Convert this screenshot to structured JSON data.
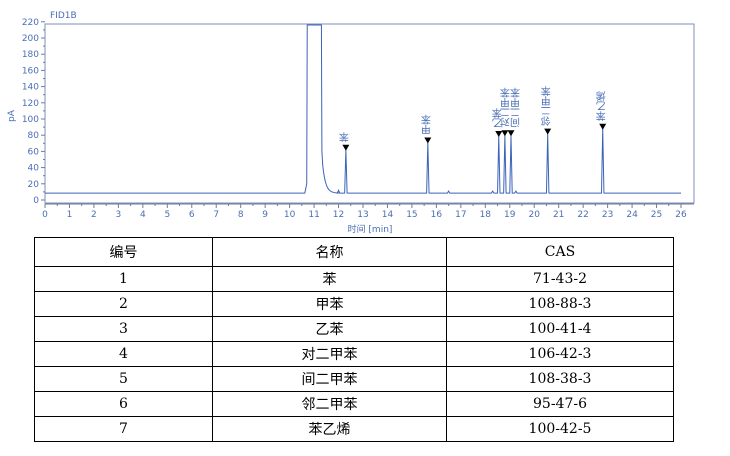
{
  "chart_data": {
    "type": "line",
    "title": "FID1B",
    "xlabel": "时间 [min]",
    "ylabel": "pA",
    "xlim": [
      0,
      26.5
    ],
    "ylim": [
      -2,
      226
    ],
    "xticks": [
      0,
      1,
      2,
      3,
      4,
      5,
      6,
      7,
      8,
      9,
      10,
      11,
      12,
      13,
      14,
      15,
      16,
      17,
      18,
      19,
      20,
      21,
      22,
      23,
      24,
      25,
      26
    ],
    "yticks": [
      0,
      20,
      40,
      60,
      80,
      100,
      120,
      140,
      160,
      180,
      200,
      220
    ],
    "baseline": 8.5,
    "solvent_peak": {
      "start": 10.7,
      "end": 11.3,
      "tail_end": 12.0
    },
    "minor_peaks": [
      {
        "x": 11.1,
        "height": 35
      },
      {
        "x": 12.0,
        "height": 12
      },
      {
        "x": 16.5,
        "height": 11
      },
      {
        "x": 18.3,
        "height": 11
      },
      {
        "x": 19.25,
        "height": 11
      }
    ],
    "peaks": [
      {
        "name": "苯",
        "x": 12.3,
        "height": 62
      },
      {
        "name": "甲苯",
        "x": 15.65,
        "height": 71
      },
      {
        "name": "乙苯",
        "x": 18.55,
        "height": 79
      },
      {
        "name": "对二甲苯",
        "x": 18.8,
        "height": 80
      },
      {
        "name": "间二甲苯",
        "x": 19.05,
        "height": 80
      },
      {
        "name": "邻二甲苯",
        "x": 20.55,
        "height": 82
      },
      {
        "name": "苯乙烯",
        "x": 22.8,
        "height": 88
      }
    ],
    "grid": false,
    "colors": {
      "line": "#3b63b8",
      "text": "#4a6fb5",
      "axis": "#6e7c95",
      "frame": "#7e8fb8",
      "marker": "#000000"
    }
  },
  "table": {
    "headers": [
      "编号",
      "名称",
      "CAS"
    ],
    "rows": [
      [
        "1",
        "苯",
        "71-43-2"
      ],
      [
        "2",
        "甲苯",
        "108-88-3"
      ],
      [
        "3",
        "乙苯",
        "100-41-4"
      ],
      [
        "4",
        "对二甲苯",
        "106-42-3"
      ],
      [
        "5",
        "间二甲苯",
        "108-38-3"
      ],
      [
        "6",
        "邻二甲苯",
        "95-47-6"
      ],
      [
        "7",
        "苯乙烯",
        "100-42-5"
      ]
    ]
  }
}
